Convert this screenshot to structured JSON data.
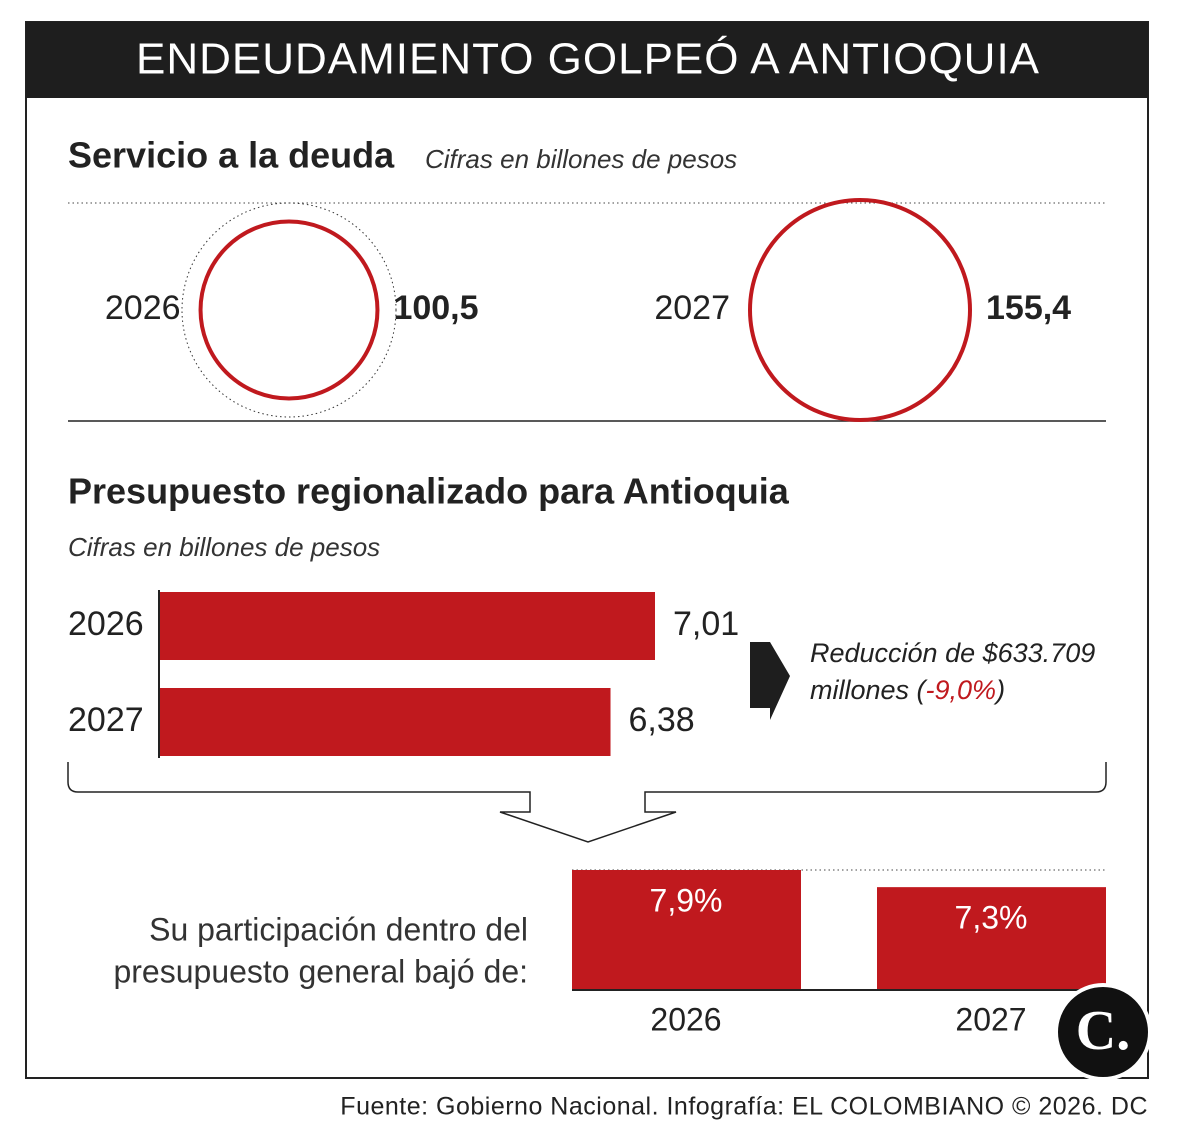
{
  "title": "ENDEUDAMIENTO GOLPEÓ A ANTIOQUIA",
  "source": "Fuente: Gobierno Nacional. Infografía: EL COLOMBIANO © 2026. DC",
  "logo": "C.",
  "chart_data": [
    {
      "type": "bubble",
      "title": "Servicio a la deuda",
      "subtitle": "Cifras en billones de pesos",
      "categories": [
        "2026",
        "2027"
      ],
      "values": [
        100.5,
        155.4
      ],
      "value_labels": [
        "100,5",
        "155,4"
      ],
      "color": "#c0191e"
    },
    {
      "type": "hbar",
      "title": "Presupuesto regionalizado para Antioquia",
      "subtitle": "Cifras en billones de pesos",
      "categories": [
        "2026",
        "2027"
      ],
      "values": [
        7.01,
        6.38
      ],
      "value_labels": [
        "7,01",
        "6,38"
      ],
      "color": "#c0191e",
      "annotation": [
        "Reducción de $633.709",
        "millones (",
        "-9,0%",
        ")"
      ]
    },
    {
      "type": "bar",
      "label": [
        "Su participación dentro del",
        "presupuesto general bajó de:"
      ],
      "categories": [
        "2026",
        "2027"
      ],
      "values": [
        7.9,
        7.3
      ],
      "value_labels": [
        "7,9%",
        "7,3%"
      ],
      "color": "#c0191e",
      "ylim": [
        3.7,
        7.9
      ]
    }
  ]
}
